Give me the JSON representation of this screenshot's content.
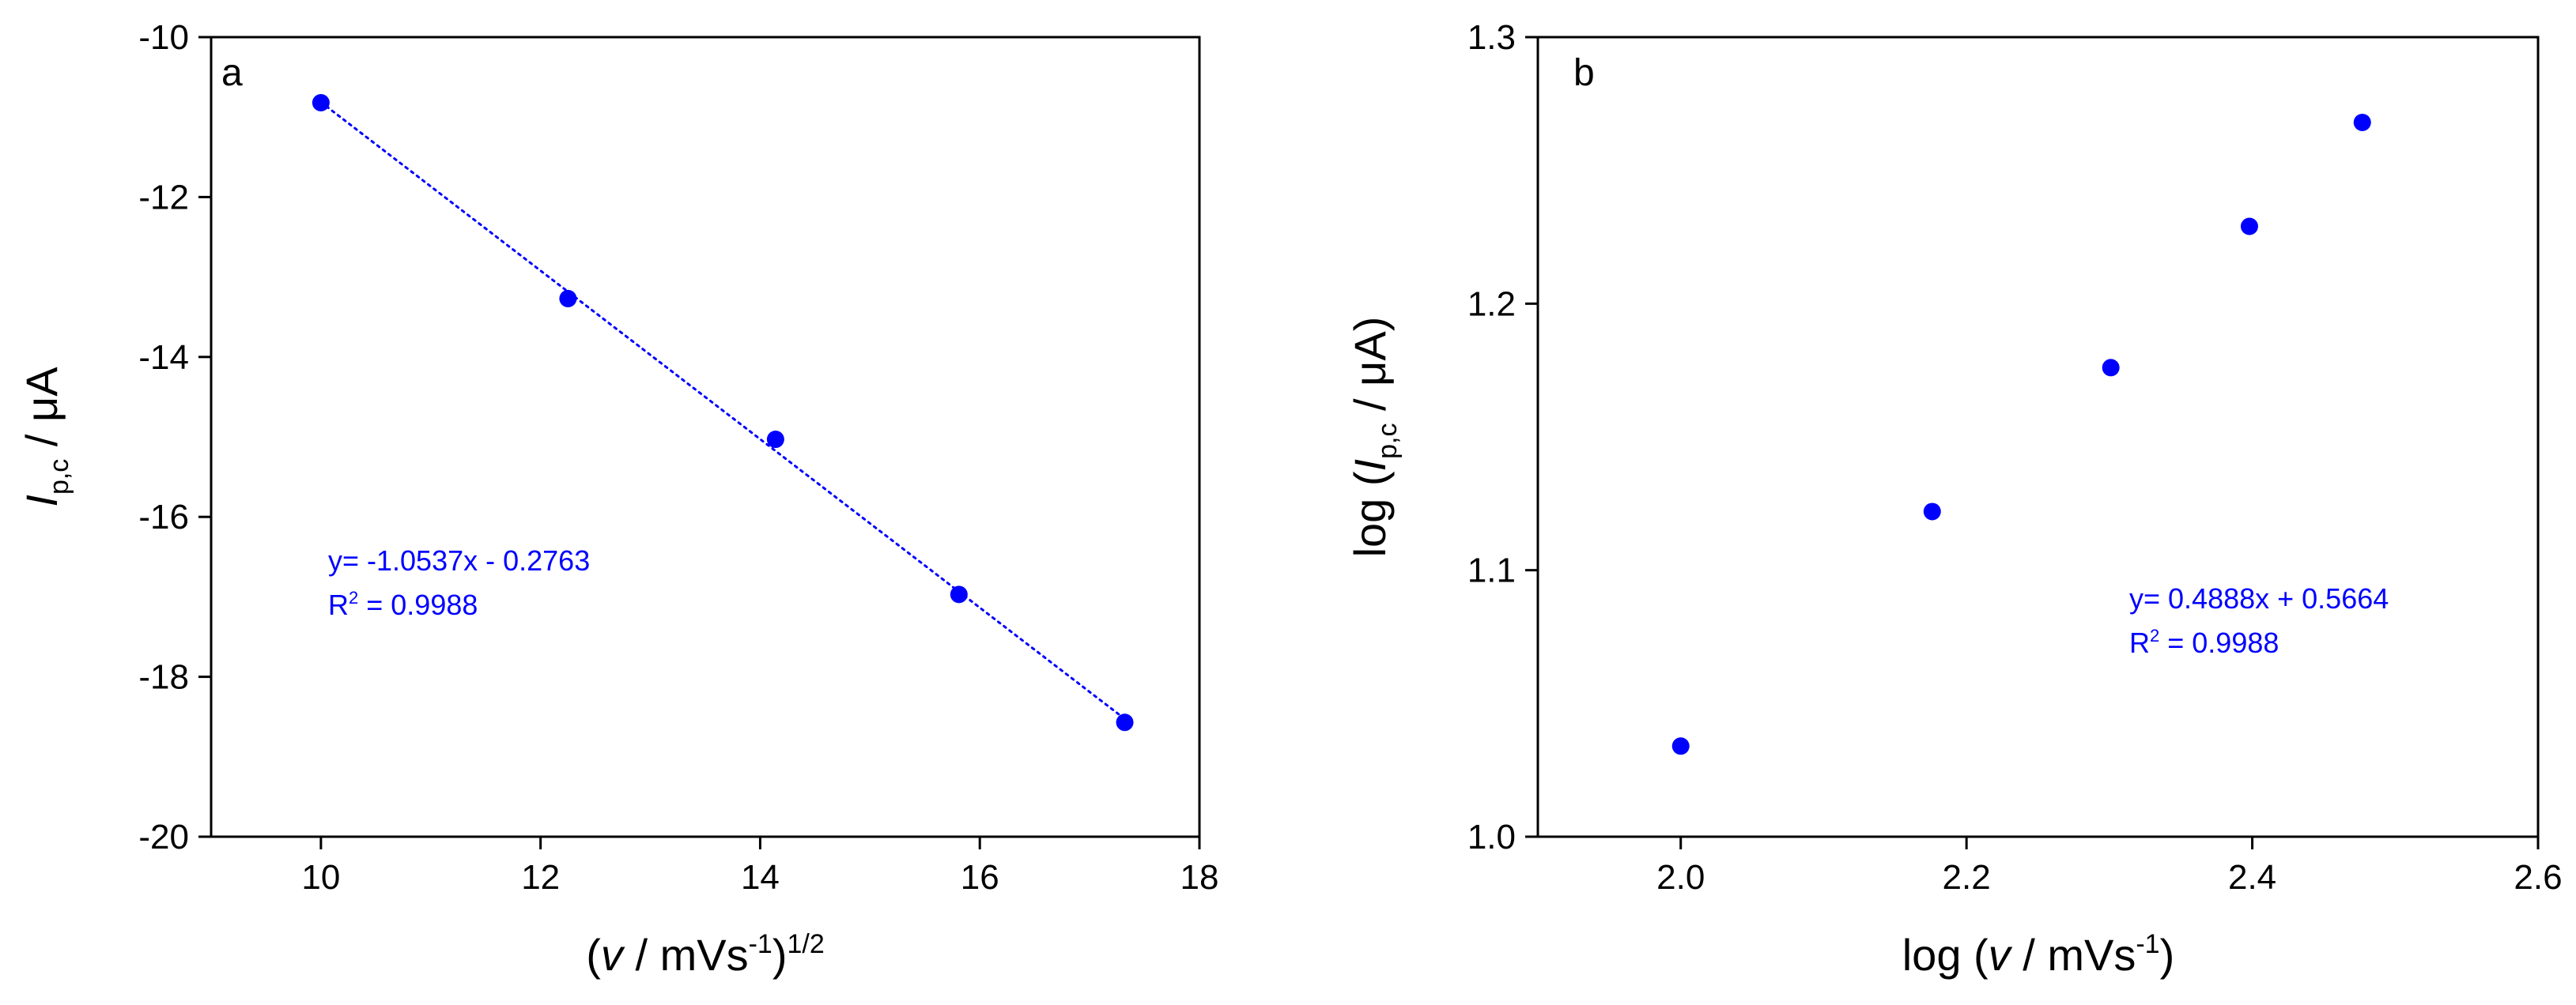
{
  "accent_color": "#0000ff",
  "chart_data": [
    {
      "type": "scatter",
      "panel_label": "a",
      "xlabel_parts": [
        "(",
        "v",
        " / mVs",
        "-1",
        ")",
        "1/2"
      ],
      "ylabel_parts": [
        "I",
        "p,c",
        " / μA"
      ],
      "xlim": [
        9,
        18
      ],
      "ylim": [
        -20,
        -10
      ],
      "xticks": [
        10,
        12,
        14,
        16,
        18
      ],
      "yticks": [
        -20,
        -18,
        -16,
        -14,
        -12,
        -10
      ],
      "grid": false,
      "series": [
        {
          "x": [
            10.0,
            12.25,
            14.14,
            15.81,
            17.32
          ],
          "y": [
            -10.82,
            -13.27,
            -15.03,
            -16.97,
            -18.57
          ],
          "marker": "circle",
          "color": "#0000ff",
          "fit": {
            "style": "dotted",
            "slope": -1.0537,
            "intercept": -0.2763
          }
        }
      ],
      "annotation": {
        "equation": "y= -1.0537x - 0.2763",
        "r2_prefix": "R",
        "r2_sup": "2",
        "r2_value": " = 0.9988"
      }
    },
    {
      "type": "scatter",
      "panel_label": "b",
      "xlabel_parts": [
        "log (",
        "v",
        " / mVs",
        "-1",
        ")"
      ],
      "ylabel_parts": [
        "log (",
        "I",
        "p,c",
        " / μA)"
      ],
      "xlim": [
        1.9,
        2.6
      ],
      "ylim": [
        1.0,
        1.3
      ],
      "xticks": [
        "2.0",
        "2.2",
        "2.4",
        "2.6"
      ],
      "yticks": [
        "1.0",
        "1.1",
        "1.2",
        "1.3"
      ],
      "grid": false,
      "series": [
        {
          "x": [
            2.0,
            2.176,
            2.301,
            2.398,
            2.477
          ],
          "y": [
            1.034,
            1.122,
            1.176,
            1.229,
            1.268
          ],
          "marker": "circle",
          "color": "#0000ff",
          "fit": {
            "style": "dotted",
            "slope": 0.4888,
            "intercept": 0.5664
          }
        }
      ],
      "annotation": {
        "equation": "y= 0.4888x + 0.5664",
        "r2_prefix": "R",
        "r2_sup": "2",
        "r2_value": " = 0.9988"
      }
    }
  ]
}
